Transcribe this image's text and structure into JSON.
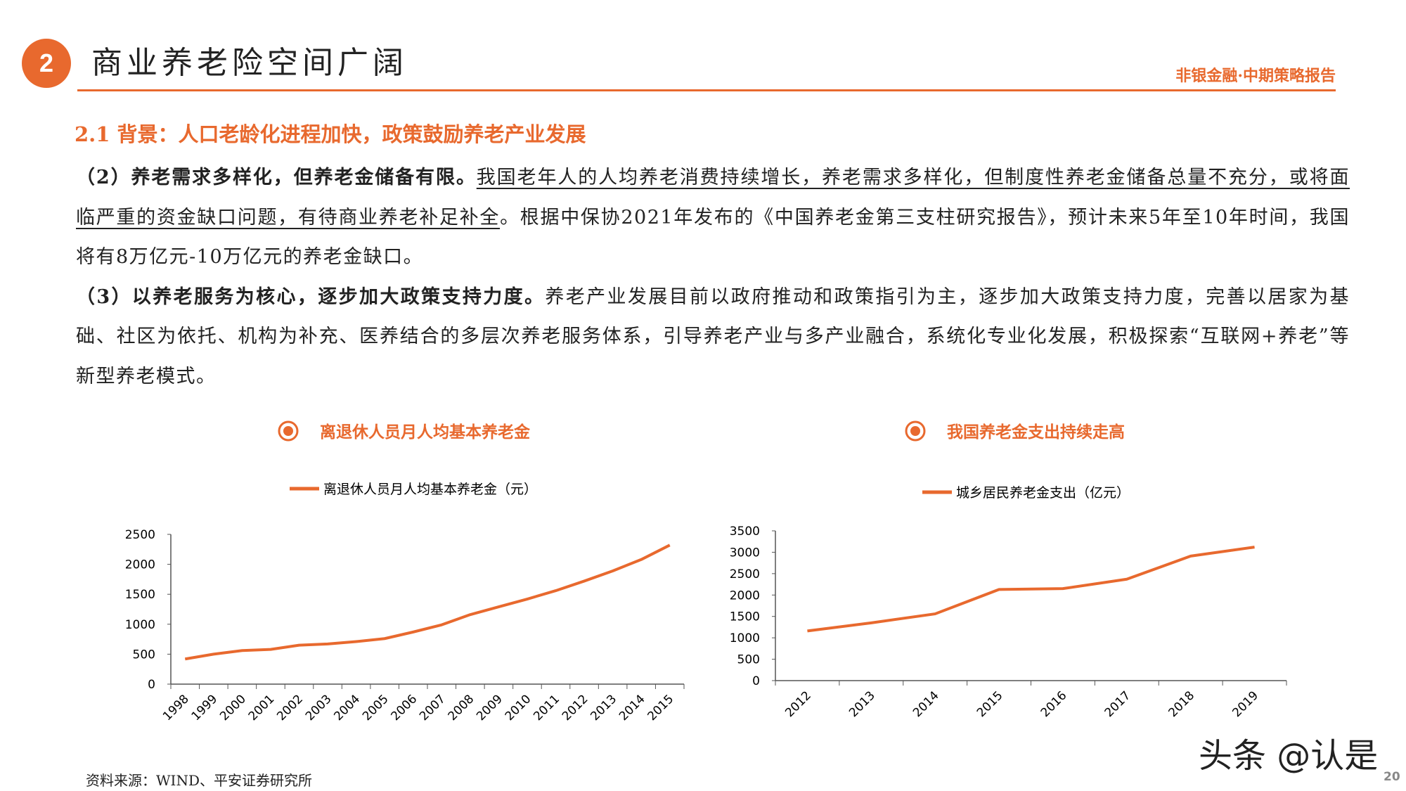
{
  "header": {
    "number": "2",
    "title": "商业养老险空间广阔",
    "report": "非银金融·中期策略报告"
  },
  "section": {
    "title": "2.1 背景：人口老龄化进程加快，政策鼓励养老产业发展"
  },
  "paragraphs": [
    [
      {
        "text": "（2）养老需求多样化，但养老金储备有限。",
        "style": "bold"
      },
      {
        "text": "我国老年人的人均养老消费持续增长，养老需求多样化，但制度性养老金储备总量不充分，或将面临严重的资金缺口问题，有待商业养老补足补全",
        "style": "underline"
      },
      {
        "text": "。根据中保协2021年发布的《中国养老金第三支柱研究报告》，预计未来5年至10年时间，我国将有8万亿元-10万亿元的养老金缺口。",
        "style": "normal"
      }
    ],
    [
      {
        "text": "（3）以养老服务为核心，逐步加大政策支持力度。",
        "style": "bold"
      },
      {
        "text": "养老产业发展目前以政府推动和政策指引为主，逐步加大政策支持力度，完善以居家为基础、社区为依托、机构为补充、医养结合的多层次养老服务体系，引导养老产业与多产业融合，系统化专业化发展，积极探索“互联网+养老”等 新型养老模式。",
        "style": "normal"
      }
    ]
  ],
  "chart_data": [
    {
      "type": "line",
      "title": "离退休人员月人均基本养老金",
      "categories": [
        "1998",
        "1999",
        "2000",
        "2001",
        "2002",
        "2003",
        "2004",
        "2005",
        "2006",
        "2007",
        "2008",
        "2009",
        "2010",
        "2011",
        "2012",
        "2013",
        "2014",
        "2015"
      ],
      "series": [
        {
          "name": "离退休人员月人均基本养老金（元）",
          "color": "#e8692e",
          "values": [
            420,
            500,
            560,
            580,
            650,
            670,
            710,
            760,
            870,
            990,
            1160,
            1290,
            1420,
            1560,
            1720,
            1890,
            2080,
            2320
          ]
        }
      ],
      "ylim": [
        0,
        2500
      ],
      "yticks": [
        0,
        500,
        1000,
        1500,
        2000,
        2500
      ]
    },
    {
      "type": "line",
      "title": "我国养老金支出持续走高",
      "categories": [
        "2012",
        "2013",
        "2014",
        "2015",
        "2016",
        "2017",
        "2018",
        "2019"
      ],
      "series": [
        {
          "name": "城乡居民养老金支出（亿元）",
          "color": "#e8692e",
          "values": [
            1160,
            1350,
            1560,
            2130,
            2150,
            2370,
            2910,
            3120
          ]
        }
      ],
      "ylim": [
        0,
        3500
      ],
      "yticks": [
        0,
        500,
        1000,
        1500,
        2000,
        2500,
        3000,
        3500
      ]
    }
  ],
  "source": "资料来源：WIND、平安证券研究所",
  "watermark": "头条 @认是",
  "page_number": "20"
}
